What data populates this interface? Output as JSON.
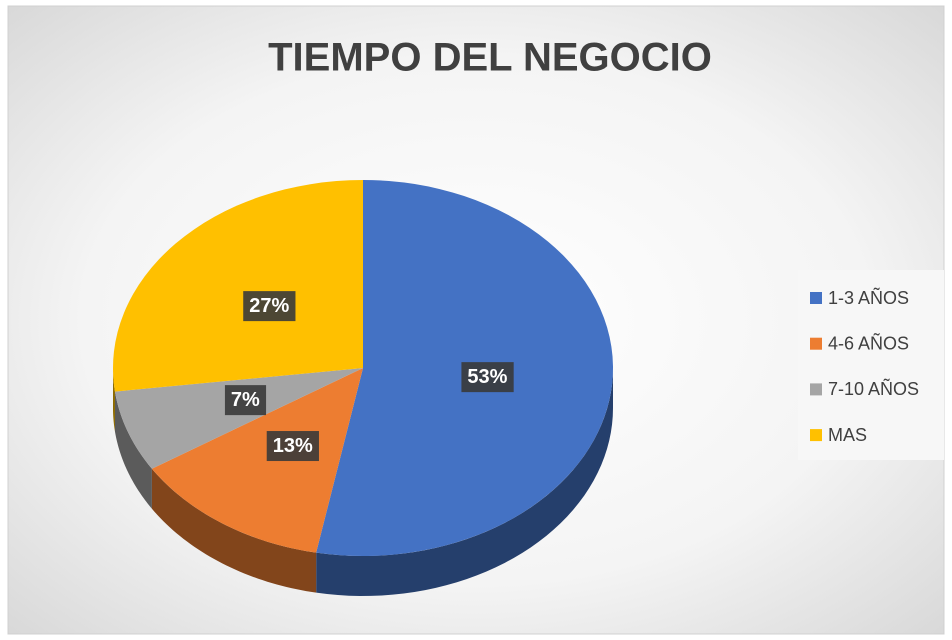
{
  "chart_data": {
    "type": "pie",
    "title": "TIEMPO DEL NEGOCIO",
    "categories": [
      "1-3 AÑOS",
      "4-6 AÑOS",
      "7-10 AÑOS",
      "MAS"
    ],
    "values": [
      53,
      13,
      7,
      27
    ],
    "value_labels": [
      "53%",
      "13%",
      "7%",
      "27%"
    ],
    "colors": [
      "#4472c4",
      "#ed7d31",
      "#a5a5a5",
      "#ffc000"
    ],
    "legend": "right"
  }
}
